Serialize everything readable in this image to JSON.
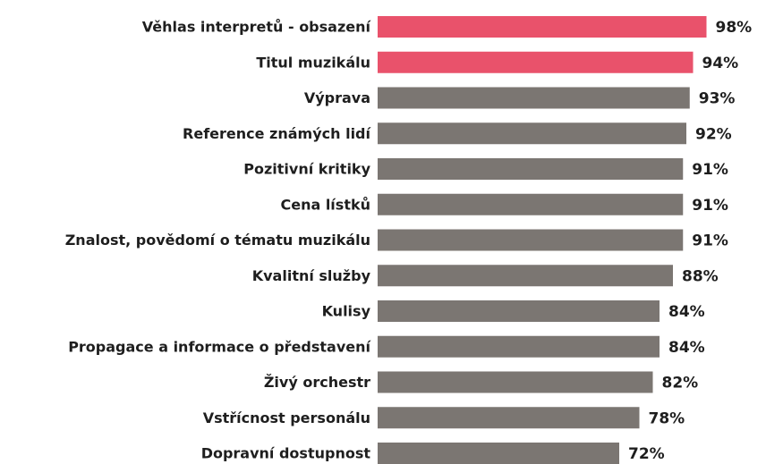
{
  "chart_data": {
    "type": "hbar",
    "categories": [
      "Věhlas interpretů - obsazení",
      "Titul muzikálu",
      "Výprava",
      "Reference známých lidí",
      "Pozitivní kritiky",
      "Cena lístků",
      "Znalost, povědomí o tématu muzikálu",
      "Kvalitní služby",
      "Kulisy",
      "Propagace a informace o představení",
      "Živý orchestr",
      "Vstřícnost personálu",
      "Dopravní dostupnost"
    ],
    "values": [
      98,
      94,
      93,
      92,
      91,
      91,
      91,
      88,
      84,
      84,
      82,
      78,
      72
    ],
    "value_labels": [
      "98%",
      "94%",
      "93%",
      "92%",
      "91%",
      "91%",
      "91%",
      "88%",
      "84%",
      "84%",
      "82%",
      "78%",
      "72%"
    ],
    "colors": [
      "#e9526b",
      "#e9526b",
      "#7b7672",
      "#7b7672",
      "#7b7672",
      "#7b7672",
      "#7b7672",
      "#7b7672",
      "#7b7672",
      "#7b7672",
      "#7b7672",
      "#7b7672",
      "#7b7672"
    ],
    "xlim": [
      0,
      100
    ]
  }
}
